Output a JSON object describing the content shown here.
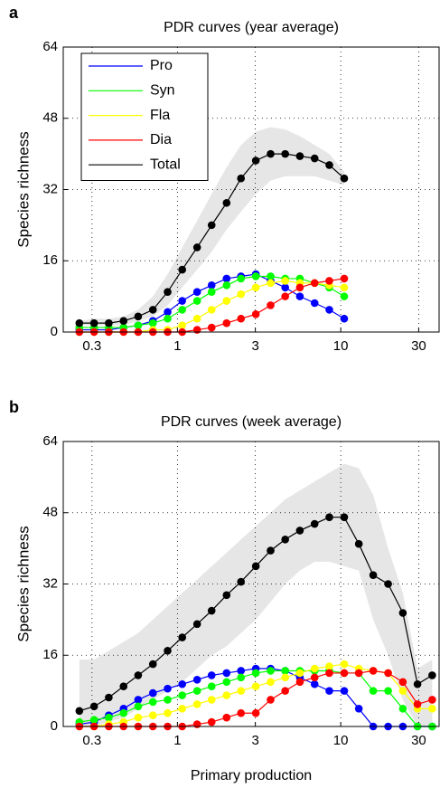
{
  "chart_data": [
    {
      "type": "line",
      "panel": "a",
      "title": "PDR curves (year average)",
      "y_label": "Species richness",
      "xscale": "log",
      "xlim": [
        0.2,
        40
      ],
      "xticks": [
        0.3,
        1,
        3,
        10,
        30
      ],
      "ylim": [
        0,
        64
      ],
      "yticks": [
        0,
        16,
        32,
        48,
        64
      ],
      "grid": true,
      "legend": "upper left",
      "band_color": "#e6e6e6",
      "x": [
        0.251,
        0.309,
        0.38,
        0.468,
        0.575,
        0.708,
        0.871,
        1.07,
        1.32,
        1.62,
        2.0,
        2.45,
        3.02,
        3.72,
        4.57,
        5.62,
        6.92,
        8.51,
        10.5
      ],
      "band_upper": [
        2.5,
        3,
        3,
        3.5,
        5,
        8,
        13,
        19,
        25,
        31,
        37,
        42,
        45,
        46,
        45.5,
        44,
        42,
        40,
        36
      ],
      "band_lower": [
        1.5,
        1.5,
        1.5,
        1.5,
        2.5,
        3.5,
        6,
        10,
        14,
        18,
        23,
        27,
        31,
        34,
        35,
        35,
        35,
        34,
        33
      ],
      "series": [
        {
          "name": "Pro",
          "color": "#0000ff",
          "values": [
            0.5,
            0.5,
            0.5,
            1,
            1.5,
            2.5,
            4.5,
            7,
            9,
            10.5,
            12,
            12.5,
            13,
            11.5,
            10,
            8,
            6.5,
            5,
            3
          ]
        },
        {
          "name": "Syn",
          "color": "#00ff00",
          "values": [
            1,
            1,
            1,
            1,
            1.5,
            2,
            3,
            5,
            7,
            9,
            10.5,
            12,
            12.5,
            12.5,
            12,
            12,
            11,
            10,
            8
          ]
        },
        {
          "name": "Fla",
          "color": "#ffff00",
          "values": [
            0,
            0,
            0,
            0,
            0,
            0.5,
            0.5,
            1.5,
            3,
            5,
            7,
            8.5,
            10,
            11,
            11.5,
            11,
            11,
            10.5,
            10
          ]
        },
        {
          "name": "Dia",
          "color": "#ff0000",
          "values": [
            0,
            0,
            0,
            0,
            0,
            0,
            0,
            0,
            0.5,
            1,
            2,
            3,
            4,
            6,
            8,
            10,
            11,
            11.5,
            12
          ]
        },
        {
          "name": "Total",
          "color": "#000000",
          "values": [
            2,
            2,
            2,
            2.5,
            3.5,
            5,
            9,
            14,
            19,
            24,
            29,
            34.5,
            38.5,
            40,
            40,
            39.5,
            39,
            37.5,
            34.5
          ]
        }
      ]
    },
    {
      "type": "line",
      "panel": "b",
      "title": "PDR curves (week average)",
      "y_label": "Species richness",
      "x_label": "Primary production",
      "xscale": "log",
      "xlim": [
        0.2,
        40
      ],
      "xticks": [
        0.3,
        1,
        3,
        10,
        30
      ],
      "ylim": [
        0,
        64
      ],
      "yticks": [
        0,
        16,
        32,
        48,
        64
      ],
      "grid": true,
      "band_color": "#e6e6e6",
      "x": [
        0.251,
        0.309,
        0.38,
        0.468,
        0.575,
        0.708,
        0.871,
        1.07,
        1.32,
        1.62,
        2.0,
        2.45,
        3.02,
        3.72,
        4.57,
        5.62,
        6.92,
        8.51,
        10.5,
        12.9,
        15.8,
        19.5,
        24.0,
        29.5,
        36.3
      ],
      "band_upper": [
        15,
        15,
        17,
        19,
        21,
        24,
        27,
        30,
        33,
        36,
        39,
        42,
        45,
        48,
        51,
        53,
        55,
        57,
        59,
        58,
        52,
        40,
        30,
        13,
        15
      ],
      "band_lower": [
        0,
        0,
        1,
        2,
        4,
        6,
        8,
        10,
        13,
        16,
        18,
        21,
        24,
        28,
        32,
        35,
        37,
        37,
        36,
        35,
        24,
        16,
        6,
        0,
        0
      ],
      "series": [
        {
          "color": "#0000ff",
          "values": [
            0.5,
            1,
            2.5,
            4,
            6,
            7.5,
            8.5,
            9.5,
            10.5,
            11.5,
            12,
            12.5,
            13,
            13,
            12.5,
            11,
            9.5,
            8,
            8,
            4,
            0,
            0,
            0,
            0,
            0
          ]
        },
        {
          "color": "#00ff00",
          "values": [
            1,
            1.5,
            2,
            3,
            4.5,
            5.5,
            6,
            7,
            8,
            9,
            10,
            11,
            12,
            12.5,
            12.5,
            12.5,
            12.5,
            12.5,
            12,
            12,
            8,
            8,
            4,
            0,
            0
          ]
        },
        {
          "color": "#ffff00",
          "values": [
            0,
            0,
            0.5,
            1,
            2,
            2.5,
            3,
            4,
            5,
            6,
            7,
            8,
            9,
            10,
            11,
            12,
            13,
            13.5,
            14,
            13,
            12.5,
            12,
            8,
            4,
            4
          ]
        },
        {
          "color": "#ff0000",
          "values": [
            0,
            0,
            0,
            0,
            0,
            0,
            0,
            0,
            0.5,
            1,
            2,
            3,
            3,
            6,
            8,
            10,
            11,
            12,
            12,
            12,
            12.5,
            12,
            10,
            5,
            6
          ]
        },
        {
          "color": "#000000",
          "values": [
            3.5,
            4.5,
            6.5,
            9,
            11.5,
            14,
            17,
            20,
            23,
            26,
            29.5,
            32.5,
            36,
            39.5,
            42,
            44,
            45.5,
            47,
            47,
            41,
            34,
            32,
            25.5,
            9.5,
            11.5
          ]
        }
      ]
    }
  ]
}
